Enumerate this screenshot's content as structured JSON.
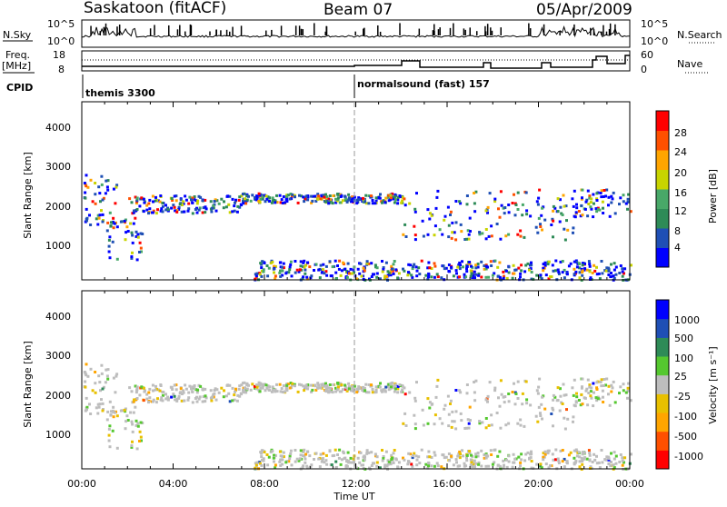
{
  "header": {
    "station": "Saskatoon (fitACF)",
    "beam": "Beam 07",
    "date": "05/Apr/2009"
  },
  "nsky_panel": {
    "left_label": "N.Sky",
    "left_ticks": [
      "10^5",
      "10^0"
    ],
    "right_ticks": [
      "10^5",
      "10^0"
    ],
    "right_label": "N.Search"
  },
  "freq_panel": {
    "left_label_top": "Freq.",
    "left_label_bottom": "[MHz]",
    "left_ticks": [
      "18",
      "8"
    ],
    "right_ticks": [
      "60",
      "0"
    ],
    "right_label": "Nave"
  },
  "cpid": {
    "label": "CPID",
    "mode1": "themis 3300",
    "mode2": "normalsound (fast) 157"
  },
  "colors": {
    "power": [
      "#0000ff",
      "#1f4fb5",
      "#2e8b57",
      "#48a868",
      "#c8d400",
      "#ffa500",
      "#ff5000",
      "#ff0000"
    ],
    "velocity": [
      "#ff0000",
      "#ff5000",
      "#ffa500",
      "#e8c000",
      "#bdbdbd",
      "#55c82f",
      "#2e8b57",
      "#1f4fb5",
      "#0000ff"
    ]
  },
  "chart_data": [
    {
      "type": "heatmap",
      "quantity": "Power",
      "xlabel": "",
      "ylabel": "Slant Range [km]",
      "yticks": [
        "1000",
        "2000",
        "3000",
        "4000"
      ],
      "ylim": [
        180,
        4700
      ],
      "colorbar_label": "Power [dB]",
      "colorbar_ticks": [
        "4",
        "8",
        "12",
        "16",
        "20",
        "24",
        "28"
      ],
      "clim": [
        0,
        32
      ]
    },
    {
      "type": "heatmap",
      "quantity": "Velocity",
      "xlabel": "Time UT",
      "ylabel": "Slant Range [km]",
      "yticks": [
        "1000",
        "2000",
        "3000",
        "4000"
      ],
      "ylim": [
        180,
        4700
      ],
      "xticks": [
        "00:00",
        "04:00",
        "08:00",
        "12:00",
        "16:00",
        "20:00",
        "00:00"
      ],
      "xlim_hours": [
        0,
        24
      ],
      "colorbar_label": "Velocity [m s⁻¹]",
      "colorbar_ticks": [
        "1000",
        "500",
        "100",
        "25",
        "-25",
        "-100",
        "-500",
        "-1000"
      ]
    }
  ]
}
